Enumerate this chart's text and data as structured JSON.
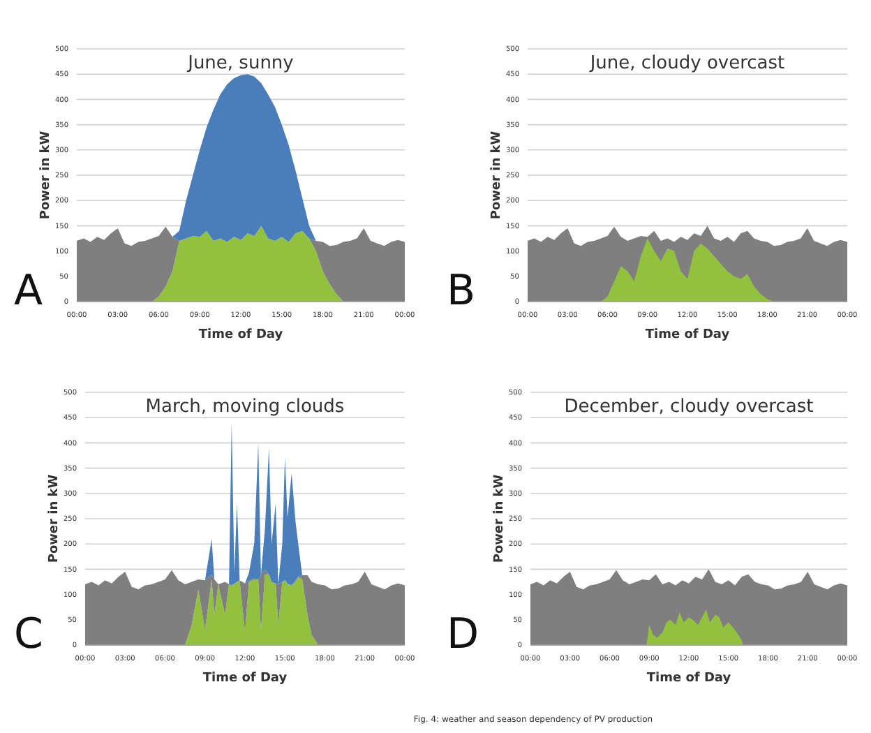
{
  "chart_data": [
    {
      "type": "area",
      "stacked": true,
      "title": "June, sunny",
      "xlabel": "Time of Day",
      "ylabel": "Power in kW",
      "annotations": [
        "A"
      ],
      "xlim": [
        0,
        24
      ],
      "ylim": [
        0,
        500
      ],
      "grid": "y",
      "xticks": [
        {
          "value": 0,
          "label": "00:00"
        },
        {
          "value": 3,
          "label": "03:00"
        },
        {
          "value": 6,
          "label": "06:00"
        },
        {
          "value": 9,
          "label": "09:00"
        },
        {
          "value": 12,
          "label": "12:00"
        },
        {
          "value": 15,
          "label": "15:00"
        },
        {
          "value": 18,
          "label": "18:00"
        },
        {
          "value": 21,
          "label": "21:00"
        },
        {
          "value": 24,
          "label": "00:00"
        }
      ],
      "yticks": [
        0,
        50,
        100,
        150,
        200,
        250,
        300,
        350,
        400,
        450,
        500
      ],
      "x": [
        0,
        0.5,
        1,
        1.5,
        2,
        2.5,
        3,
        3.5,
        4,
        4.5,
        5,
        5.5,
        6,
        6.5,
        7,
        7.5,
        8,
        8.5,
        9,
        9.5,
        10,
        10.5,
        11,
        11.5,
        12,
        12.5,
        13,
        13.5,
        14,
        14.5,
        15,
        15.5,
        16,
        16.5,
        17,
        17.5,
        18,
        18.5,
        19,
        19.5,
        20,
        20.5,
        21,
        21.5,
        22,
        22.5,
        23,
        23.5,
        24
      ],
      "series": [
        {
          "color": "#92c13e",
          "values": [
            null,
            null,
            null,
            null,
            null,
            null,
            null,
            null,
            null,
            null,
            null,
            0,
            10,
            30,
            60,
            120,
            125,
            130,
            128,
            140,
            120,
            125,
            118,
            128,
            122,
            135,
            130,
            150,
            125,
            120,
            128,
            118,
            135,
            140,
            125,
            100,
            60,
            35,
            15,
            0,
            null,
            null,
            null,
            null,
            null,
            null,
            null,
            null,
            null
          ]
        },
        {
          "color": "#7f7f7f",
          "values": [
            120,
            125,
            118,
            128,
            122,
            135,
            145,
            115,
            110,
            118,
            120,
            125,
            120,
            118,
            68,
            0,
            null,
            null,
            null,
            null,
            null,
            null,
            null,
            null,
            null,
            null,
            null,
            null,
            null,
            null,
            null,
            null,
            null,
            null,
            0,
            20,
            58,
            75,
            97,
            118,
            120,
            125,
            145,
            120,
            115,
            110,
            118,
            122,
            118
          ]
        },
        {
          "color": "#4a7ebb",
          "values": [
            null,
            null,
            null,
            null,
            null,
            null,
            null,
            null,
            null,
            null,
            null,
            null,
            null,
            null,
            0,
            20,
            75,
            120,
            172,
            205,
            260,
            285,
            312,
            314,
            326,
            315,
            315,
            282,
            285,
            265,
            222,
            192,
            125,
            65,
            25,
            0,
            null,
            null,
            null,
            null,
            null,
            null,
            null,
            null,
            null,
            null,
            null,
            null,
            null
          ]
        }
      ]
    },
    {
      "type": "area",
      "title": "June, cloudy overcast",
      "xlabel": "Time of Day",
      "ylabel": "Power in kW",
      "annotations": [
        "B"
      ],
      "xlim": [
        0,
        24
      ],
      "ylim": [
        0,
        500
      ],
      "grid": "y",
      "xticks": [
        {
          "value": 0,
          "label": "00:00"
        },
        {
          "value": 3,
          "label": "03:00"
        },
        {
          "value": 6,
          "label": "06:00"
        },
        {
          "value": 9,
          "label": "09:00"
        },
        {
          "value": 12,
          "label": "12:00"
        },
        {
          "value": 15,
          "label": "15:00"
        },
        {
          "value": 18,
          "label": "18:00"
        },
        {
          "value": 21,
          "label": "21:00"
        },
        {
          "value": 24,
          "label": "00:00"
        }
      ],
      "yticks": [
        0,
        50,
        100,
        150,
        200,
        250,
        300,
        350,
        400,
        450,
        500
      ],
      "x": [
        0,
        0.5,
        1,
        1.5,
        2,
        2.5,
        3,
        3.5,
        4,
        4.5,
        5,
        5.5,
        6,
        6.5,
        7,
        7.5,
        8,
        8.5,
        9,
        9.5,
        10,
        10.5,
        11,
        11.5,
        12,
        12.5,
        13,
        13.5,
        14,
        14.5,
        15,
        15.5,
        16,
        16.5,
        17,
        17.5,
        18,
        18.5,
        19,
        19.5,
        20,
        20.5,
        21,
        21.5,
        22,
        22.5,
        23,
        23.5,
        24
      ],
      "series": [
        {
          "color": "#7f7f7f",
          "values": [
            120,
            125,
            118,
            128,
            122,
            135,
            145,
            115,
            110,
            118,
            120,
            125,
            130,
            148,
            128,
            120,
            125,
            130,
            128,
            140,
            120,
            125,
            118,
            128,
            122,
            135,
            130,
            150,
            125,
            120,
            128,
            118,
            135,
            140,
            125,
            120,
            118,
            110,
            112,
            118,
            120,
            125,
            145,
            120,
            115,
            110,
            118,
            122,
            118
          ]
        },
        {
          "color": "#92c13e",
          "x": [
            5.5,
            6,
            6.5,
            7,
            7.5,
            8,
            8.5,
            9,
            9.5,
            10,
            10.5,
            11,
            11.5,
            12,
            12.5,
            13,
            13.5,
            14,
            14.5,
            15,
            15.5,
            16,
            16.5,
            17,
            17.5,
            18,
            18.5
          ],
          "values": [
            0,
            10,
            40,
            70,
            60,
            40,
            90,
            125,
            100,
            80,
            105,
            100,
            60,
            45,
            100,
            115,
            105,
            90,
            75,
            60,
            50,
            45,
            55,
            30,
            15,
            5,
            0
          ]
        }
      ]
    },
    {
      "type": "area",
      "stacked": true,
      "title": "March, moving clouds",
      "xlabel": "Time of Day",
      "ylabel": "Power in kW",
      "annotations": [
        "C"
      ],
      "xlim": [
        0,
        24
      ],
      "ylim": [
        0,
        500
      ],
      "grid": "y",
      "xticks": [
        {
          "value": 0,
          "label": "00:00"
        },
        {
          "value": 3,
          "label": "03:00"
        },
        {
          "value": 6,
          "label": "06:00"
        },
        {
          "value": 9,
          "label": "09:00"
        },
        {
          "value": 12,
          "label": "12:00"
        },
        {
          "value": 15,
          "label": "15:00"
        },
        {
          "value": 18,
          "label": "18:00"
        },
        {
          "value": 21,
          "label": "21:00"
        },
        {
          "value": 24,
          "label": "00:00"
        }
      ],
      "yticks": [
        0,
        50,
        100,
        150,
        200,
        250,
        300,
        350,
        400,
        450,
        500
      ],
      "x": [
        0,
        0.5,
        1,
        1.5,
        2,
        2.5,
        3,
        3.5,
        4,
        4.5,
        5,
        5.5,
        6,
        6.5,
        7,
        7.5,
        8,
        8.5,
        9,
        9.5,
        9.7,
        10,
        10.5,
        10.8,
        11,
        11.2,
        11.4,
        11.6,
        12,
        12.3,
        12.7,
        13,
        13.2,
        13.5,
        13.8,
        14,
        14.3,
        14.5,
        14.8,
        15,
        15.2,
        15.5,
        15.8,
        16,
        16.3,
        16.7,
        17,
        17.5,
        18,
        18.5,
        19,
        19.5,
        20,
        20.5,
        21,
        21.5,
        22,
        22.5,
        23,
        23.5,
        24
      ],
      "series": [
        {
          "color": "#92c13e",
          "values": [
            null,
            null,
            null,
            null,
            null,
            null,
            null,
            null,
            null,
            null,
            null,
            null,
            null,
            null,
            null,
            0,
            40,
            110,
            30,
            130,
            60,
            120,
            60,
            120,
            118,
            120,
            125,
            128,
            25,
            125,
            130,
            130,
            30,
            140,
            140,
            125,
            122,
            40,
            125,
            128,
            120,
            118,
            125,
            135,
            130,
            60,
            20,
            0,
            null,
            null,
            null,
            null,
            null,
            null,
            null,
            null,
            null,
            null,
            null,
            null,
            null
          ]
        },
        {
          "color": "#7f7f7f",
          "values": [
            120,
            125,
            118,
            128,
            122,
            135,
            145,
            115,
            110,
            118,
            120,
            125,
            130,
            148,
            128,
            120,
            85,
            20,
            98,
            10,
            70,
            0,
            65,
            0,
            0,
            2,
            0,
            0,
            97,
            3,
            2,
            0,
            108,
            10,
            0,
            0,
            0,
            80,
            0,
            0,
            2,
            0,
            3,
            0,
            8,
            78,
            105,
            120,
            118,
            110,
            112,
            118,
            120,
            125,
            145,
            120,
            115,
            110,
            118,
            122,
            118
          ]
        },
        {
          "color": "#4a7ebb",
          "values": [
            null,
            null,
            null,
            null,
            null,
            null,
            null,
            null,
            null,
            null,
            null,
            null,
            null,
            null,
            null,
            null,
            null,
            null,
            0,
            70,
            0,
            null,
            null,
            0,
            322,
            20,
            155,
            0,
            0,
            15,
            70,
            270,
            0,
            80,
            250,
            75,
            158,
            0,
            75,
            242,
            130,
            222,
            115,
            65,
            0,
            null,
            null,
            null,
            null,
            null,
            null,
            null,
            null,
            null,
            null,
            null,
            null,
            null,
            null,
            null,
            null
          ]
        }
      ]
    },
    {
      "type": "area",
      "title": "December, cloudy overcast",
      "xlabel": "Time of Day",
      "ylabel": "Power in kW",
      "annotations": [
        "D",
        "Fig. 4: weather and season dependency of PV production"
      ],
      "xlim": [
        0,
        24
      ],
      "ylim": [
        0,
        500
      ],
      "grid": "y",
      "xticks": [
        {
          "value": 0,
          "label": "00:00"
        },
        {
          "value": 3,
          "label": "03:00"
        },
        {
          "value": 6,
          "label": "06:00"
        },
        {
          "value": 9,
          "label": "09:00"
        },
        {
          "value": 12,
          "label": "12:00"
        },
        {
          "value": 15,
          "label": "15:00"
        },
        {
          "value": 18,
          "label": "18:00"
        },
        {
          "value": 21,
          "label": "21:00"
        },
        {
          "value": 24,
          "label": "00:00"
        }
      ],
      "yticks": [
        0,
        50,
        100,
        150,
        200,
        250,
        300,
        350,
        400,
        450,
        500
      ],
      "x": [
        0,
        0.5,
        1,
        1.5,
        2,
        2.5,
        3,
        3.5,
        4,
        4.5,
        5,
        5.5,
        6,
        6.5,
        7,
        7.5,
        8,
        8.5,
        9,
        9.5,
        10,
        10.5,
        11,
        11.5,
        12,
        12.5,
        13,
        13.5,
        14,
        14.5,
        15,
        15.5,
        16,
        16.5,
        17,
        17.5,
        18,
        18.5,
        19,
        19.5,
        20,
        20.5,
        21,
        21.5,
        22,
        22.5,
        23,
        23.5,
        24
      ],
      "series": [
        {
          "color": "#7f7f7f",
          "values": [
            120,
            125,
            118,
            128,
            122,
            135,
            145,
            115,
            110,
            118,
            120,
            125,
            130,
            148,
            128,
            120,
            125,
            130,
            128,
            140,
            120,
            125,
            118,
            128,
            122,
            135,
            130,
            150,
            125,
            120,
            128,
            118,
            135,
            140,
            125,
            120,
            118,
            110,
            112,
            118,
            120,
            125,
            145,
            120,
            115,
            110,
            118,
            122,
            118
          ]
        },
        {
          "color": "#92c13e",
          "x": [
            8.8,
            9,
            9.3,
            9.6,
            10,
            10.3,
            10.6,
            11,
            11.3,
            11.6,
            12,
            12.3,
            12.7,
            13,
            13.3,
            13.6,
            14,
            14.3,
            14.6,
            15,
            15.5,
            16,
            16.1
          ],
          "values": [
            0,
            40,
            20,
            15,
            25,
            45,
            50,
            40,
            65,
            45,
            55,
            50,
            40,
            55,
            70,
            45,
            60,
            55,
            35,
            45,
            30,
            10,
            0
          ]
        }
      ]
    }
  ]
}
